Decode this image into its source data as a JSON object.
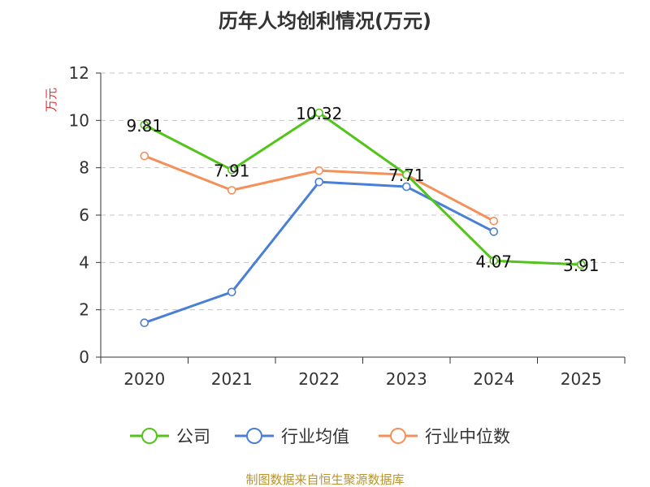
{
  "chart_data": {
    "type": "line",
    "title": "历年人均创利情况(万元)",
    "ylabel": "万元",
    "xlabel": "",
    "categories": [
      "2020",
      "2021",
      "2022",
      "2023",
      "2024",
      "2025"
    ],
    "ylim": [
      0,
      12
    ],
    "yticks": [
      0,
      2,
      4,
      6,
      8,
      10,
      12
    ],
    "grid": true,
    "legend_position": "bottom",
    "series": [
      {
        "name": "公司",
        "color": "#52c41a",
        "values": [
          9.81,
          7.91,
          10.32,
          7.71,
          4.07,
          3.91
        ],
        "labels": [
          "9.81",
          "7.91",
          "10.32",
          "7.71",
          "4.07",
          "3.91"
        ]
      },
      {
        "name": "行业均值",
        "color": "#4a7fd6",
        "values": [
          1.45,
          2.75,
          7.4,
          7.2,
          5.3,
          null
        ]
      },
      {
        "name": "行业中位数",
        "color": "#f4905a",
        "values": [
          8.5,
          7.05,
          7.88,
          7.7,
          5.75,
          null
        ]
      }
    ],
    "source": "制图数据来自恒生聚源数据库"
  }
}
